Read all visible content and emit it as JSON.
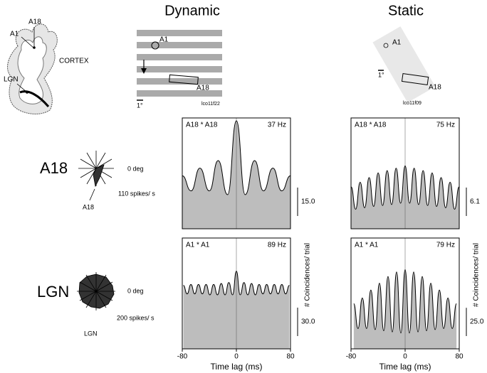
{
  "figure": {
    "columns": [
      "Dynamic",
      "Static"
    ],
    "cortex": {
      "a1": "A1",
      "a18": "A18",
      "cortex": "CORTEX",
      "lgn": "LGN"
    },
    "dynamic_stimulus": {
      "a1": "A1",
      "a18": "A18",
      "scale": "1°",
      "id": "lco11f22"
    },
    "static_stimulus": {
      "a1": "A1",
      "a18": "A18",
      "scale": "1°",
      "id": "lco11f09"
    },
    "rows": [
      {
        "label": "A18",
        "orientation": "0 deg",
        "rate": "110 spikes/ s",
        "site": "A18"
      },
      {
        "label": "LGN",
        "orientation": "0 deg",
        "rate": "200 spikes/ s",
        "site": "LGN"
      }
    ]
  },
  "chart_data": [
    {
      "type": "area",
      "title": "A18 * A18",
      "annotation": "37 Hz",
      "color": "#bdbdbd",
      "line_color": "#000000",
      "xlim": [
        -80,
        80
      ],
      "ylim": [
        0,
        58.5
      ],
      "scale_bar": {
        "value": 15,
        "label": "15.0"
      },
      "x": [
        -80,
        -67,
        -54,
        -40,
        -27,
        -13,
        0,
        13,
        27,
        40,
        54,
        67,
        80
      ],
      "values": [
        28,
        20,
        32,
        20,
        36,
        18,
        57,
        18,
        36,
        20,
        32,
        20,
        28
      ]
    },
    {
      "type": "area",
      "title": "A1 * A1",
      "annotation": "89 Hz",
      "color": "#bdbdbd",
      "line_color": "#000000",
      "xlim": [
        -80,
        80
      ],
      "ylim": [
        0,
        117
      ],
      "scale_bar": {
        "value": 30,
        "label": "30.0"
      },
      "xticks": [
        -80,
        0,
        80
      ],
      "xlabel": "Time lag (ms)",
      "ylabel": "# Coincidences/ trial",
      "x": [
        -78.4,
        -72.8,
        -67.2,
        -61.6,
        -56,
        -50.4,
        -44.8,
        -39.2,
        -33.6,
        -28,
        -22.4,
        -16.8,
        -11.2,
        -5.6,
        0,
        5.6,
        11.2,
        16.8,
        22.4,
        28,
        33.6,
        39.2,
        44.8,
        50.4,
        56,
        61.6,
        67.2,
        72.8,
        78.4
      ],
      "values": [
        67,
        58,
        68,
        58,
        68,
        58,
        68,
        57,
        68,
        57,
        69,
        57,
        70,
        57,
        82,
        57,
        70,
        57,
        69,
        57,
        68,
        58,
        68,
        58,
        68,
        58,
        68,
        58,
        67
      ]
    },
    {
      "type": "area",
      "title": "A18 * A18",
      "annotation": "75 Hz",
      "color": "#bdbdbd",
      "line_color": "#000000",
      "xlim": [
        -80,
        80
      ],
      "ylim": [
        0,
        23.8
      ],
      "scale_bar": {
        "value": 6.1,
        "label": "6.1"
      },
      "x": [
        -79.8,
        -73.15,
        -66.5,
        -59.85,
        -53.2,
        -46.55,
        -39.9,
        -33.25,
        -26.6,
        -19.95,
        -13.3,
        -6.65,
        0,
        6.65,
        13.3,
        19.95,
        26.6,
        33.25,
        39.9,
        46.55,
        53.2,
        59.85,
        66.5,
        73.15,
        79.8
      ],
      "values": [
        9,
        4.2,
        10,
        4.5,
        11,
        4.8,
        12,
        5,
        12.5,
        5.2,
        13,
        5.5,
        13.5,
        5.5,
        13,
        5.2,
        12.5,
        5,
        12,
        4.8,
        11,
        4.5,
        10,
        4.2,
        9
      ]
    },
    {
      "type": "area",
      "title": "A1 * A1",
      "annotation": "79 Hz",
      "color": "#bdbdbd",
      "line_color": "#000000",
      "xlim": [
        -80,
        80
      ],
      "ylim": [
        0,
        98
      ],
      "scale_bar": {
        "value": 25,
        "label": "25.0"
      },
      "xticks": [
        -80,
        0,
        80
      ],
      "xlabel": "Time lag (ms)",
      "ylabel": "# Coincidences/ trial",
      "x": [
        -75.96,
        -69.63,
        -63.3,
        -56.97,
        -50.64,
        -44.31,
        -37.98,
        -31.65,
        -25.32,
        -18.99,
        -12.66,
        -6.33,
        0,
        6.33,
        12.66,
        18.99,
        25.32,
        31.65,
        37.98,
        44.31,
        50.64,
        56.97,
        63.3,
        69.63,
        75.96
      ],
      "values": [
        40,
        18,
        45,
        18,
        52,
        17,
        58,
        16,
        64,
        15,
        68,
        14,
        70,
        14,
        68,
        15,
        64,
        16,
        58,
        17,
        52,
        18,
        45,
        18,
        40
      ]
    }
  ]
}
